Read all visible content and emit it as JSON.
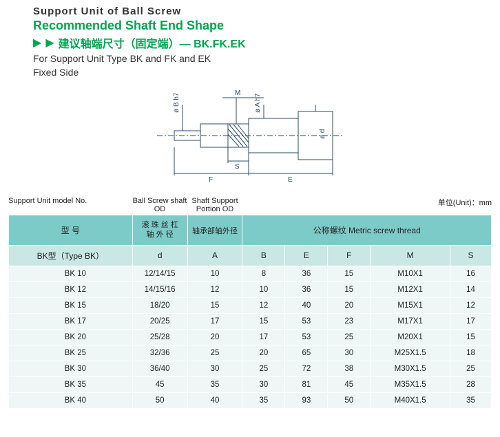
{
  "header": {
    "main_title": "Support Unit of Ball Screw",
    "rec_title": "Recommended Shaft End Shape",
    "cn_sub": "建议轴端尺寸（固定端）— BK.FK.EK",
    "desc_line1": "For Support Unit Type BK and FK and EK",
    "desc_line2": "Fixed Side"
  },
  "diagram": {
    "labels": {
      "m": "M",
      "s": "S",
      "f": "F",
      "e": "E",
      "phi_b": "ø B  h7",
      "phi_a": "ø A  h7",
      "phi_d": "ø d"
    },
    "stroke": "#2a4a6a"
  },
  "table_top_labels": {
    "model": "Support Unit model No.",
    "d": "Ball Screw shaft OD",
    "a": "Shaft Support Portion OD",
    "unit": "单位(Unit)：mm"
  },
  "table": {
    "header_row1": {
      "model": "型  号",
      "d": "滚 珠 丝 杠\n轴 外 径",
      "a": "轴承部轴外径",
      "metric_span": "公称螺纹 Metric screw thread"
    },
    "header_row2": {
      "model": "BK型（Type BK）",
      "d": "d",
      "a": "A",
      "b": "B",
      "e": "E",
      "f": "F",
      "m": "M",
      "s": "S"
    },
    "rows": [
      {
        "model": "BK  10",
        "d": "12/14/15",
        "a": "10",
        "b": "8",
        "e": "36",
        "f": "15",
        "m": "M10X1",
        "s": "16"
      },
      {
        "model": "BK  12",
        "d": "14/15/16",
        "a": "12",
        "b": "10",
        "e": "36",
        "f": "15",
        "m": "M12X1",
        "s": "14"
      },
      {
        "model": "BK  15",
        "d": "18/20",
        "a": "15",
        "b": "12",
        "e": "40",
        "f": "20",
        "m": "M15X1",
        "s": "12"
      },
      {
        "model": "BK  17",
        "d": "20/25",
        "a": "17",
        "b": "15",
        "e": "53",
        "f": "23",
        "m": "M17X1",
        "s": "17"
      },
      {
        "model": "BK  20",
        "d": "25/28",
        "a": "20",
        "b": "17",
        "e": "53",
        "f": "25",
        "m": "M20X1",
        "s": "15"
      },
      {
        "model": "BK  25",
        "d": "32/36",
        "a": "25",
        "b": "20",
        "e": "65",
        "f": "30",
        "m": "M25X1.5",
        "s": "18"
      },
      {
        "model": "BK  30",
        "d": "36/40",
        "a": "30",
        "b": "25",
        "e": "72",
        "f": "38",
        "m": "M30X1.5",
        "s": "25"
      },
      {
        "model": "BK  35",
        "d": "45",
        "a": "35",
        "b": "30",
        "e": "81",
        "f": "45",
        "m": "M35X1.5",
        "s": "28"
      },
      {
        "model": "BK  40",
        "d": "50",
        "a": "40",
        "b": "35",
        "e": "93",
        "f": "50",
        "m": "M40X1.5",
        "s": "35"
      }
    ]
  }
}
